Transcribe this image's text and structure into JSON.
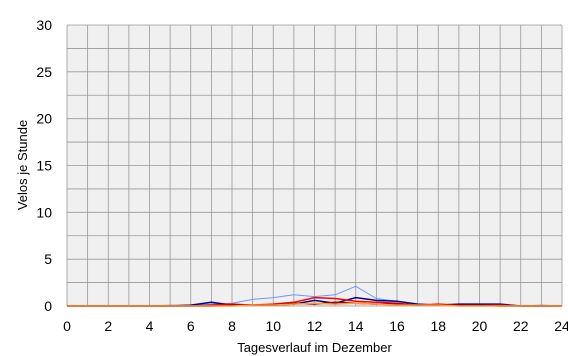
{
  "chart_data": {
    "type": "line",
    "xlabel": "Tagesverlauf im Dezember",
    "ylabel": "Velos je Stunde",
    "xlim": [
      0,
      24
    ],
    "ylim": [
      0,
      30
    ],
    "x_ticks": [
      "0",
      "2",
      "4",
      "6",
      "8",
      "10",
      "12",
      "14",
      "16",
      "18",
      "20",
      "22",
      "24"
    ],
    "y_ticks": [
      "0",
      "5",
      "10",
      "15",
      "20",
      "25",
      "30"
    ],
    "grid": true,
    "plot_background": "#f0f0f0",
    "grid_color": "#999999",
    "x": [
      0,
      1,
      2,
      3,
      4,
      5,
      6,
      7,
      8,
      9,
      10,
      11,
      12,
      13,
      14,
      15,
      16,
      17,
      18,
      19,
      20,
      21,
      22,
      23,
      24
    ],
    "series": [
      {
        "color": "#6699ff",
        "values": [
          0,
          0,
          0,
          0,
          0,
          0.1,
          0.1,
          0.2,
          0.3,
          0.7,
          0.9,
          1.2,
          1.0,
          1.2,
          2.1,
          0.8,
          0.5,
          0.2,
          0.1,
          0.1,
          0.1,
          0.1,
          0,
          0.1,
          0
        ]
      },
      {
        "color": "#000099",
        "values": [
          0,
          0,
          0,
          0,
          0,
          0,
          0.1,
          0.4,
          0.1,
          0.1,
          0.1,
          0.2,
          0.6,
          0.3,
          0.9,
          0.6,
          0.5,
          0.2,
          0.1,
          0.2,
          0.2,
          0.2,
          0,
          0,
          0
        ]
      },
      {
        "color": "#ff0000",
        "values": [
          0,
          0,
          0,
          0,
          0,
          0,
          0,
          0.1,
          0.2,
          0.1,
          0.2,
          0.4,
          0.9,
          0.8,
          0.5,
          0.4,
          0.3,
          0.1,
          0.2,
          0.1,
          0.1,
          0.1,
          0,
          0,
          0
        ]
      },
      {
        "color": "#990000",
        "values": [
          0,
          0,
          0,
          0,
          0,
          0,
          0,
          0,
          0.1,
          0.1,
          0.1,
          0.3,
          0.2,
          0.4,
          0.3,
          0.2,
          0.2,
          0.1,
          0.1,
          0.1,
          0.1,
          0,
          0,
          0,
          0
        ]
      },
      {
        "color": "#ff9933",
        "values": [
          0,
          0,
          0,
          0,
          0,
          0,
          0,
          0,
          0,
          0.1,
          0.1,
          0.2,
          0.3,
          0.2,
          0.3,
          0.2,
          0.1,
          0.1,
          0.1,
          0,
          0,
          0,
          0,
          0,
          0
        ]
      }
    ]
  }
}
